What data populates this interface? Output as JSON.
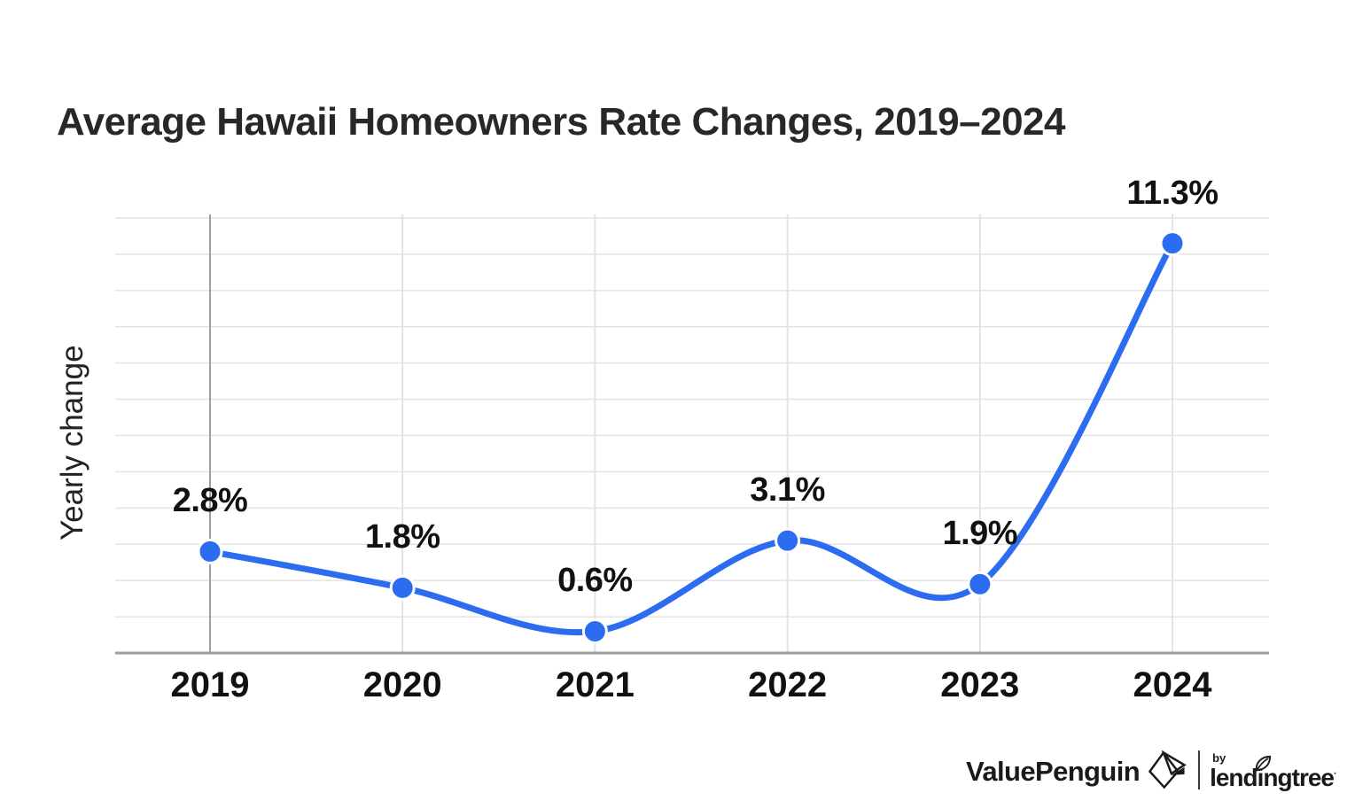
{
  "page": {
    "title": "Average Hawaii Homeowners Rate Changes, 2019–2024"
  },
  "chart_data": {
    "type": "line",
    "title": "Average Hawaii Homeowners Rate Changes, 2019–2024",
    "categories": [
      "2019",
      "2020",
      "2021",
      "2022",
      "2023",
      "2024"
    ],
    "values": [
      2.8,
      1.8,
      0.6,
      3.1,
      1.9,
      11.3
    ],
    "point_labels": [
      "2.8%",
      "1.8%",
      "0.6%",
      "3.1%",
      "1.9%",
      "11.3%"
    ],
    "xlabel": "",
    "ylabel": "Yearly change",
    "ylim": [
      0,
      12
    ],
    "gridline_interval_pct": 1,
    "y_tick_labels": "none",
    "grid": true,
    "legend": false,
    "line_color": "#2b6cf0",
    "point_color": "#2b6cf0",
    "grid_color": "#e3e3e3",
    "axis_color": "#9e9e9e",
    "label_color": "#111111"
  },
  "branding": {
    "valuepenguin": "ValuePenguin",
    "by": "by",
    "lendingtree": "lendingtree",
    "reg": "·",
    "icons": {
      "valuepenguin_mark": "origami-penguin-diamond",
      "lendingtree_leaf": "leaf"
    }
  }
}
